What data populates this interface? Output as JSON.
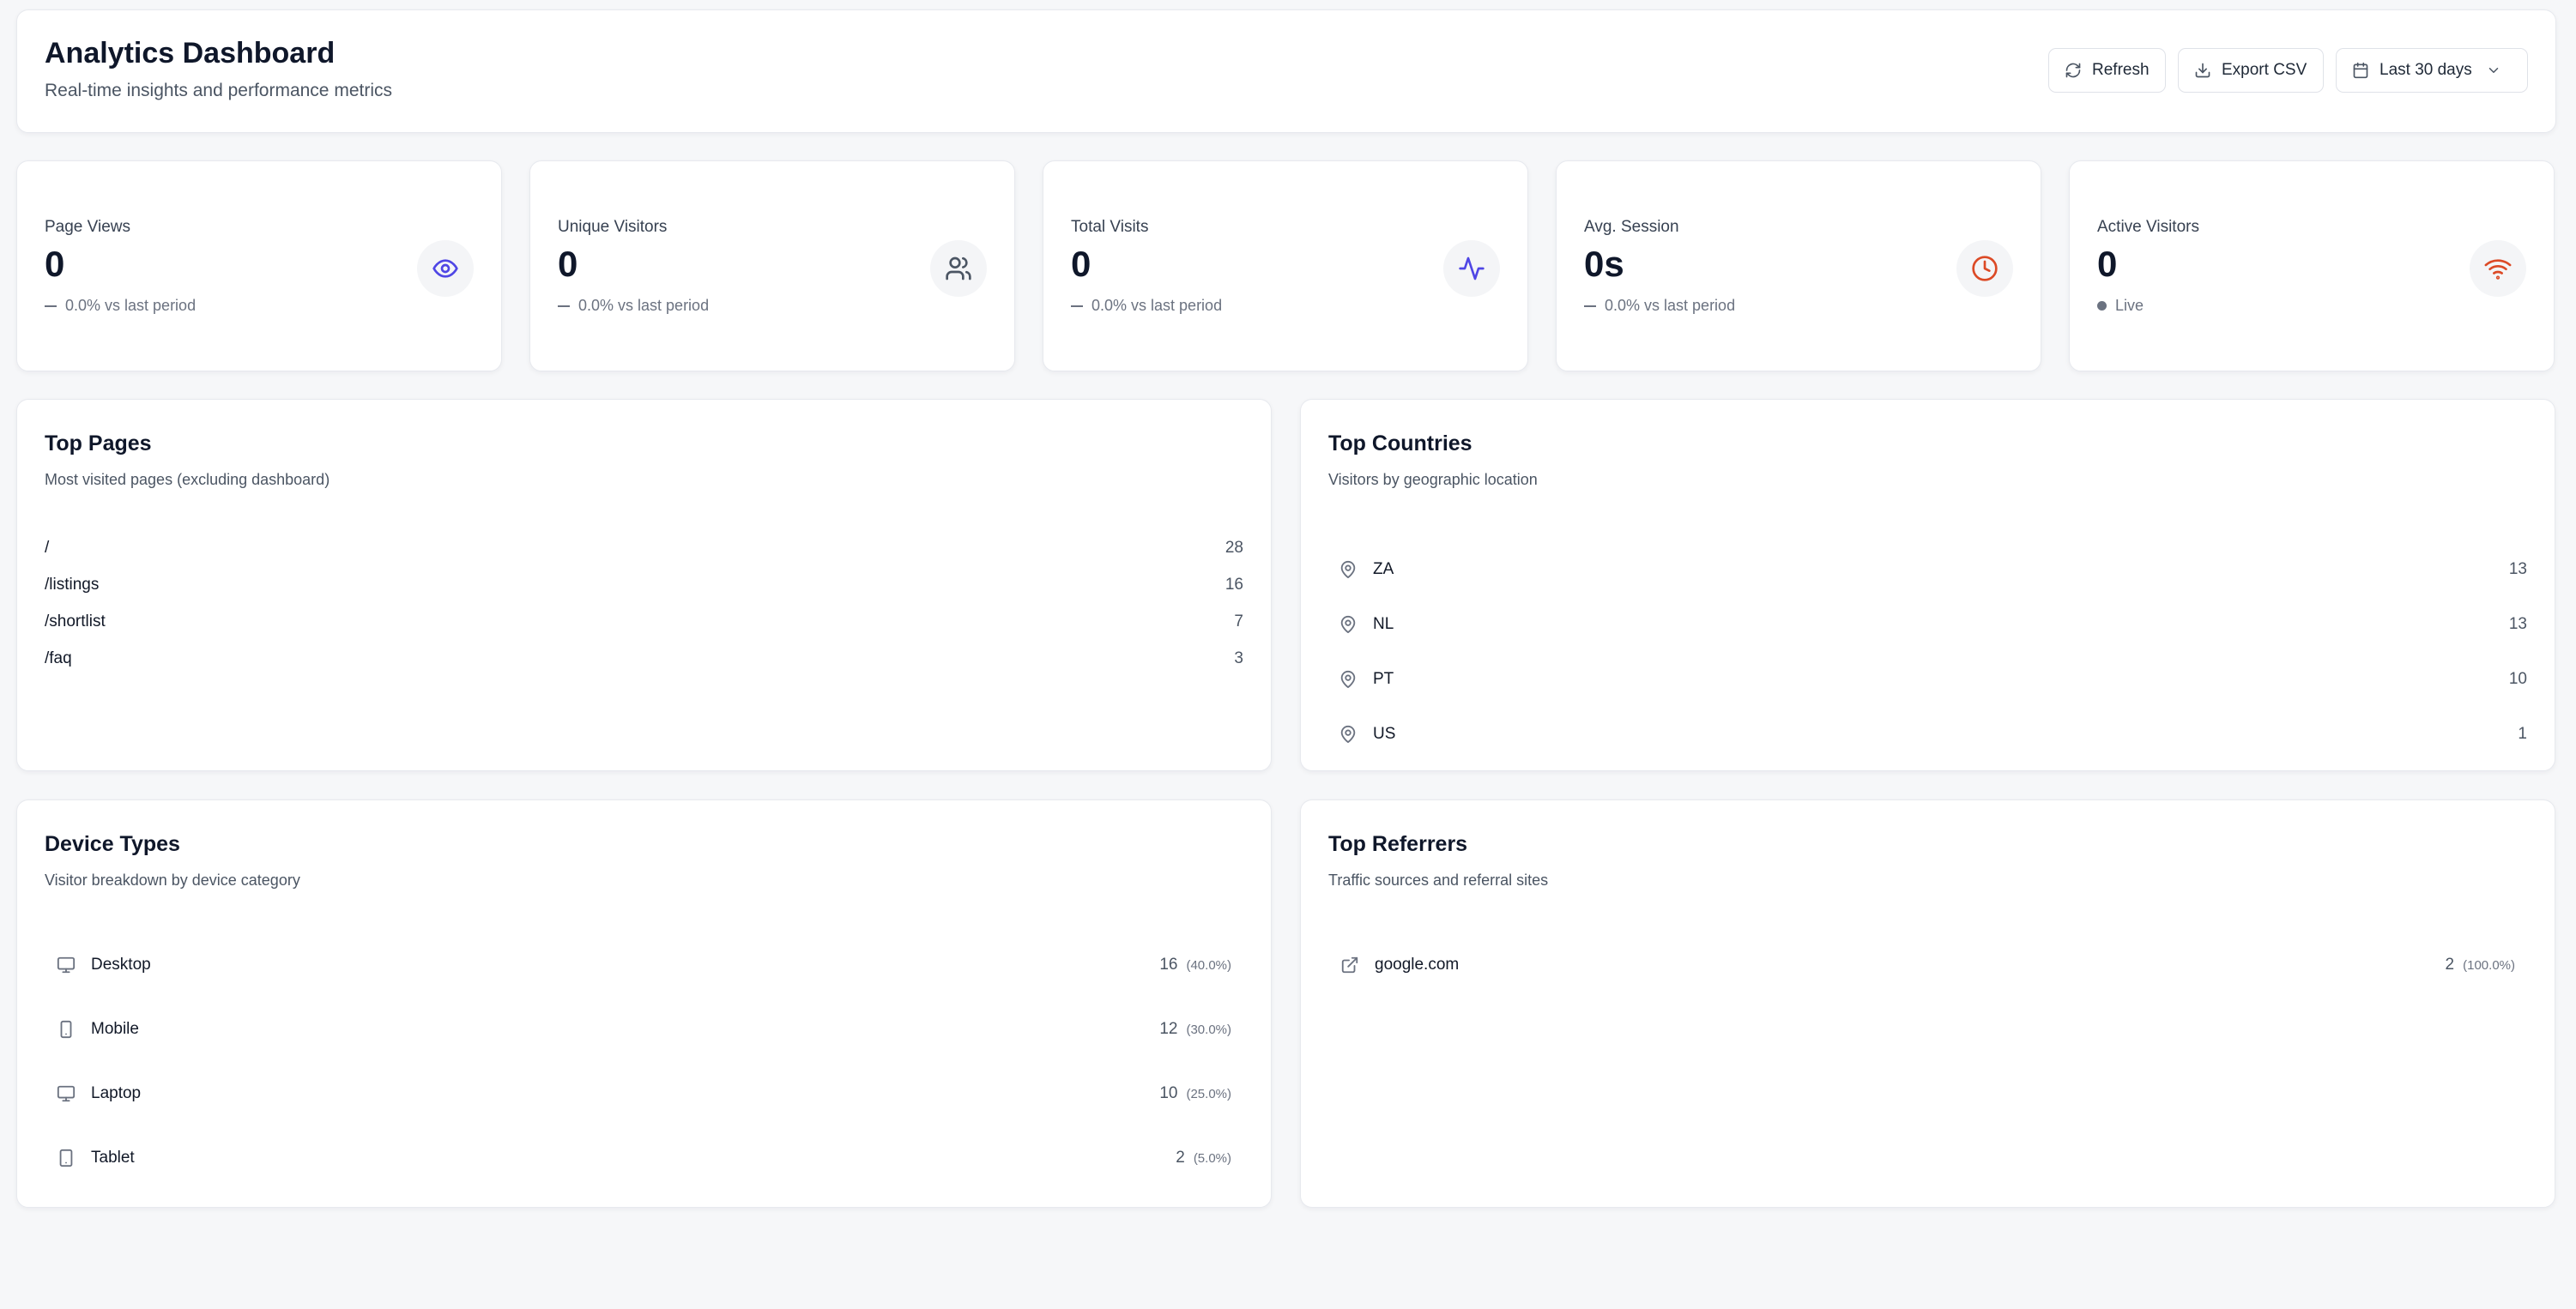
{
  "header": {
    "title": "Analytics Dashboard",
    "subtitle": "Real-time insights and performance metrics",
    "buttons": {
      "refresh": "Refresh",
      "export": "Export CSV",
      "range": "Last 30 days"
    }
  },
  "stats": [
    {
      "label": "Page Views",
      "value": "0",
      "change": "0.0% vs last period",
      "icon": "eye-icon",
      "icon_color": "#4f46e5"
    },
    {
      "label": "Unique Visitors",
      "value": "0",
      "change": "0.0% vs last period",
      "icon": "users-icon",
      "icon_color": "#4b5563"
    },
    {
      "label": "Total Visits",
      "value": "0",
      "change": "0.0% vs last period",
      "icon": "activity-icon",
      "icon_color": "#4f46e5"
    },
    {
      "label": "Avg. Session",
      "value": "0s",
      "change": "0.0% vs last period",
      "icon": "clock-icon",
      "icon_color": "#dc4a26"
    },
    {
      "label": "Active Visitors",
      "value": "0",
      "change": "Live",
      "icon": "wifi-icon",
      "icon_color": "#dc4a26"
    }
  ],
  "top_pages": {
    "title": "Top Pages",
    "subtitle": "Most visited pages (excluding dashboard)",
    "rows": [
      {
        "path": "/",
        "count": "28"
      },
      {
        "path": "/listings",
        "count": "16"
      },
      {
        "path": "/shortlist",
        "count": "7"
      },
      {
        "path": "/faq",
        "count": "3"
      }
    ]
  },
  "top_countries": {
    "title": "Top Countries",
    "subtitle": "Visitors by geographic location",
    "rows": [
      {
        "code": "ZA",
        "count": "13"
      },
      {
        "code": "NL",
        "count": "13"
      },
      {
        "code": "PT",
        "count": "10"
      },
      {
        "code": "US",
        "count": "1"
      }
    ]
  },
  "device_types": {
    "title": "Device Types",
    "subtitle": "Visitor breakdown by device category",
    "rows": [
      {
        "name": "Desktop",
        "count": "16",
        "pct": "(40.0%)",
        "icon": "monitor-icon"
      },
      {
        "name": "Mobile",
        "count": "12",
        "pct": "(30.0%)",
        "icon": "smartphone-icon"
      },
      {
        "name": "Laptop",
        "count": "10",
        "pct": "(25.0%)",
        "icon": "monitor-icon"
      },
      {
        "name": "Tablet",
        "count": "2",
        "pct": "(5.0%)",
        "icon": "tablet-icon"
      }
    ]
  },
  "top_referrers": {
    "title": "Top Referrers",
    "subtitle": "Traffic sources and referral sites",
    "rows": [
      {
        "name": "google.com",
        "count": "2",
        "pct": "(100.0%)",
        "icon": "external-link-icon"
      }
    ]
  }
}
